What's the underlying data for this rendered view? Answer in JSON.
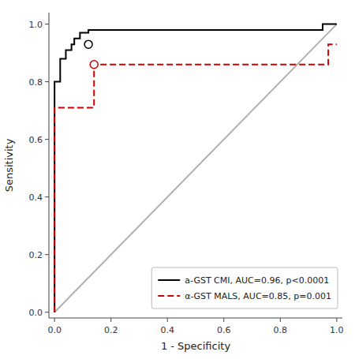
{
  "chart_data": {
    "type": "line",
    "xlabel": "1 - Specificity",
    "ylabel": "Sensitivity",
    "xlim": [
      -0.02,
      1.02
    ],
    "ylim": [
      -0.02,
      1.04
    ],
    "xticks": [
      {
        "value": 0.0,
        "label": "0.0"
      },
      0.2,
      0.4,
      0.6,
      0.8,
      {
        "value": 1.0,
        "label": "1.0"
      }
    ],
    "yticks": [
      {
        "value": 0.0,
        "label": "0.0"
      },
      0.2,
      0.4,
      0.6,
      0.8,
      {
        "value": 1.0,
        "label": "1.0"
      }
    ],
    "grid": false,
    "legend": "lower right",
    "series": [
      {
        "color": "#b0b0b0",
        "line_style": "solid",
        "x": [
          0,
          1
        ],
        "values": [
          0,
          1
        ]
      },
      {
        "name": "a-GST CMI, AUC=0.96, p<0.0001",
        "color": "#000000",
        "line_style": "solid",
        "x": [
          0.0,
          0.0,
          0.02,
          0.02,
          0.04,
          0.04,
          0.06,
          0.06,
          0.07,
          0.07,
          0.09,
          0.09,
          0.12,
          0.12,
          0.25,
          0.25,
          0.95,
          0.95,
          1.0
        ],
        "values": [
          0.0,
          0.8,
          0.8,
          0.88,
          0.88,
          0.91,
          0.91,
          0.93,
          0.93,
          0.95,
          0.95,
          0.97,
          0.97,
          0.98,
          0.98,
          0.98,
          0.98,
          1.0,
          1.0
        ]
      },
      {
        "name": "α-GST MALS, AUC=0.85, p=0.001",
        "color": "#cc0000",
        "line_style": "dashed",
        "x": [
          0.0,
          0.0,
          0.0,
          0.14,
          0.14,
          0.97,
          0.97,
          1.0
        ],
        "values": [
          0.0,
          0.07,
          0.71,
          0.71,
          0.86,
          0.86,
          0.93,
          0.93
        ]
      },
      {
        "type": "scatter",
        "marker": "circle",
        "color": "#000000",
        "x": [
          0.12
        ],
        "values": [
          0.93
        ]
      },
      {
        "type": "scatter",
        "marker": "circle",
        "color": "#cc0000",
        "x": [
          0.14
        ],
        "values": [
          0.86
        ]
      }
    ]
  }
}
